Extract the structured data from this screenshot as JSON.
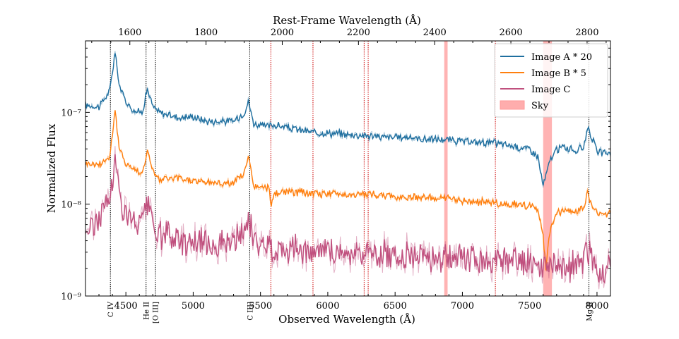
{
  "chart_data": {
    "type": "line",
    "title": "",
    "xlabel": "Observed Wavelength (Å)",
    "ylabel": "Normalized Flux",
    "top_xlabel": "Rest-Frame Wavelength (Å)",
    "xlim": [
      4200,
      8100
    ],
    "ylim": [
      1e-09,
      6e-07
    ],
    "yscale": "log",
    "x_ticks": [
      4500,
      5000,
      5500,
      6000,
      6500,
      7000,
      7500,
      8000
    ],
    "x_tick_labels": [
      "4500",
      "5000",
      "5500",
      "6000",
      "6500",
      "7000",
      "7500",
      "8000"
    ],
    "top_ticks": [
      1600,
      1800,
      2000,
      2200,
      2400,
      2600,
      2800
    ],
    "top_tick_labels": [
      "1600",
      "1800",
      "2000",
      "2200",
      "2400",
      "2600",
      "2800"
    ],
    "y_ticks": [
      1e-09,
      1e-08,
      1e-07
    ],
    "y_tick_labels": [
      "10⁻⁹",
      "10⁻⁸",
      "10⁻⁷"
    ],
    "legend_position": "top-right",
    "series": [
      {
        "name": "Image A * 20",
        "color": "#1f6f9f",
        "x": [
          4200,
          4300,
          4380,
          4420,
          4450,
          4500,
          4560,
          4620,
          4660,
          4700,
          4750,
          4800,
          4900,
          5000,
          5100,
          5200,
          5300,
          5380,
          5410,
          5450,
          5500,
          5550,
          5600,
          5700,
          5800,
          5900,
          6000,
          6100,
          6200,
          6300,
          6400,
          6500,
          6600,
          6700,
          6800,
          6900,
          7000,
          7100,
          7200,
          7300,
          7400,
          7500,
          7560,
          7600,
          7620,
          7650,
          7700,
          7750,
          7800,
          7850,
          7900,
          7930,
          7960,
          8000,
          8050,
          8100
        ],
        "y": [
          1.2e-07,
          1.15e-07,
          1.7e-07,
          4.5e-07,
          2e-07,
          1.3e-07,
          1.05e-07,
          1e-07,
          1.8e-07,
          1.15e-07,
          1e-07,
          9.5e-08,
          8.8e-08,
          9e-08,
          8e-08,
          8e-08,
          8e-08,
          1e-07,
          1.3e-07,
          7.6e-08,
          7.2e-08,
          7e-08,
          7.3e-08,
          6.8e-08,
          6.4e-08,
          6e-08,
          6e-08,
          5.8e-08,
          5.7e-08,
          5.6e-08,
          5.4e-08,
          5.3e-08,
          5.4e-08,
          5.1e-08,
          5.1e-08,
          5e-08,
          4.8e-08,
          4.7e-08,
          4.7e-08,
          4.5e-08,
          4.2e-08,
          4e-08,
          3.3e-08,
          1.6e-08,
          2e-08,
          3e-08,
          3.9e-08,
          4.2e-08,
          4e-08,
          3.8e-08,
          4.2e-08,
          7e-08,
          5.5e-08,
          3.7e-08,
          3.6e-08,
          3.6e-08
        ]
      },
      {
        "name": "Image B * 5",
        "color": "#ff7f0e",
        "x": [
          4200,
          4300,
          4380,
          4420,
          4450,
          4500,
          4560,
          4620,
          4660,
          4700,
          4750,
          4800,
          4900,
          5000,
          5100,
          5200,
          5300,
          5380,
          5410,
          5450,
          5500,
          5560,
          5580,
          5600,
          5700,
          5800,
          5900,
          6000,
          6100,
          6200,
          6300,
          6400,
          6500,
          6600,
          6700,
          6800,
          6900,
          7000,
          7100,
          7200,
          7300,
          7400,
          7500,
          7560,
          7600,
          7620,
          7650,
          7700,
          7750,
          7800,
          7850,
          7900,
          7930,
          7960,
          8000,
          8050,
          8100
        ],
        "y": [
          2.8e-08,
          2.7e-08,
          3.3e-08,
          1.05e-07,
          4e-08,
          2.8e-08,
          2.4e-08,
          2.2e-08,
          3.7e-08,
          2.4e-08,
          1.8e-08,
          1.9e-08,
          1.9e-08,
          1.8e-08,
          1.75e-08,
          1.7e-08,
          1.7e-08,
          2.2e-08,
          3.2e-08,
          1.6e-08,
          1.5e-08,
          1.5e-08,
          1e-08,
          1.3e-08,
          1.35e-08,
          1.35e-08,
          1.3e-08,
          1.3e-08,
          1.3e-08,
          1.25e-08,
          1.3e-08,
          1.25e-08,
          1.2e-08,
          1.2e-08,
          1.2e-08,
          1.15e-08,
          1.15e-08,
          1.1e-08,
          1.05e-08,
          1.05e-08,
          1e-08,
          1e-08,
          9.5e-09,
          8.5e-09,
          4.5e-09,
          2e-09,
          5e-09,
          8e-09,
          8.5e-09,
          8.5e-09,
          8.5e-09,
          9e-09,
          1.3e-08,
          1e-08,
          8e-09,
          7.8e-09,
          7.8e-09
        ]
      },
      {
        "name": "Image C",
        "color": "#c0507e",
        "x": [
          4200,
          4300,
          4380,
          4420,
          4450,
          4500,
          4560,
          4620,
          4660,
          4700,
          4750,
          4800,
          4900,
          5000,
          5100,
          5200,
          5300,
          5380,
          5410,
          5450,
          5500,
          5600,
          5700,
          5800,
          5900,
          6000,
          6100,
          6200,
          6300,
          6400,
          6500,
          6600,
          6700,
          6800,
          6900,
          7000,
          7100,
          7200,
          7300,
          7400,
          7500,
          7560,
          7600,
          7650,
          7700,
          7800,
          7900,
          7930,
          7960,
          8000,
          8050,
          8100
        ],
        "y": [
          5e-09,
          7e-09,
          1.2e-08,
          3e-08,
          1.3e-08,
          8e-09,
          6e-09,
          6.5e-09,
          1e-08,
          6e-09,
          4.5e-09,
          4.5e-09,
          4e-09,
          4e-09,
          3.8e-09,
          3.8e-09,
          3.7e-09,
          5e-09,
          7e-09,
          4e-09,
          3.5e-09,
          3.3e-09,
          3.3e-09,
          3.2e-09,
          3.1e-09,
          3e-09,
          3e-09,
          3e-09,
          2.9e-09,
          2.8e-09,
          2.8e-09,
          2.8e-09,
          2.7e-09,
          2.6e-09,
          2.6e-09,
          2.5e-09,
          2.5e-09,
          2.4e-09,
          2.4e-09,
          2.3e-09,
          2.3e-09,
          2.1e-09,
          1.9e-09,
          2e-09,
          2.1e-09,
          2.1e-09,
          2.2e-09,
          3.4e-09,
          2.6e-09,
          2e-09,
          1.9e-09,
          1.9e-09
        ]
      }
    ],
    "sky_bands": [
      {
        "label": "Sky",
        "xmin": 6865,
        "xmax": 6890
      },
      {
        "xmin": 7600,
        "xmax": 7665
      }
    ],
    "sky_color": "#ff9999",
    "emission_lines": [
      {
        "x": 4385,
        "label": "C IV"
      },
      {
        "x": 4650,
        "label": "He II"
      },
      {
        "x": 4720,
        "label": "[O III]"
      },
      {
        "x": 5420,
        "label": "C III]"
      },
      {
        "x": 7940,
        "label": "Mg II"
      }
    ],
    "emission_line_color": "#000000",
    "sky_lines": [
      5577,
      5890,
      6300,
      6270,
      7245
    ],
    "sky_line_color": "#cc0000"
  }
}
